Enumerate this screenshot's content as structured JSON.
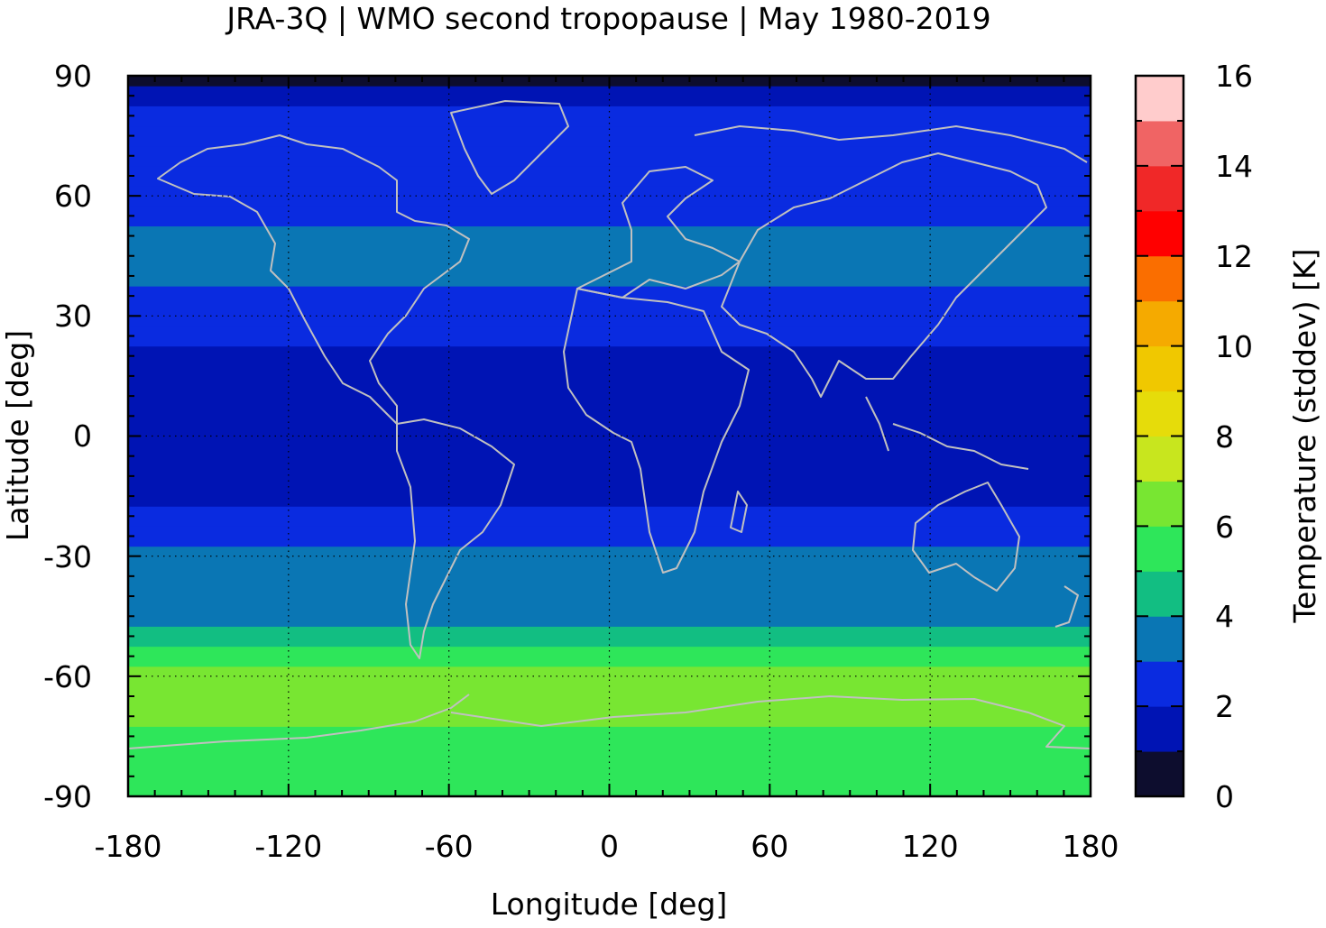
{
  "chart_data": {
    "type": "heatmap",
    "title": "JRA-3Q | WMO second tropopause | May 1980-2019",
    "xlabel": "Longitude [deg]",
    "ylabel": "Latitude [deg]",
    "xlim": [
      -180,
      180
    ],
    "ylim": [
      -90,
      90
    ],
    "x_ticks": [
      -180,
      -120,
      -60,
      0,
      60,
      120,
      180
    ],
    "y_ticks": [
      -90,
      -60,
      -30,
      0,
      30,
      60,
      90
    ],
    "x_tick_labels": [
      "-180",
      "-120",
      "-60",
      "0",
      "60",
      "120",
      "180"
    ],
    "y_tick_labels": [
      "-90",
      "-60",
      "-30",
      "0",
      "30",
      "60",
      "90"
    ],
    "grid": true,
    "colorbar": {
      "label": "Temperature (stddev) [K]",
      "range": [
        0,
        16
      ],
      "ticks": [
        0,
        2,
        4,
        6,
        8,
        10,
        12,
        14,
        16
      ],
      "tick_labels": [
        "0",
        "2",
        "4",
        "6",
        "8",
        "10",
        "12",
        "14",
        "16"
      ],
      "levels": [
        {
          "min": 0,
          "max": 1,
          "color": "#0d0d2e"
        },
        {
          "min": 1,
          "max": 2,
          "color": "#0014b4"
        },
        {
          "min": 2,
          "max": 3,
          "color": "#0a2be0"
        },
        {
          "min": 3,
          "max": 4,
          "color": "#0a76b4"
        },
        {
          "min": 4,
          "max": 5,
          "color": "#12be82"
        },
        {
          "min": 5,
          "max": 6,
          "color": "#2ee65a"
        },
        {
          "min": 6,
          "max": 7,
          "color": "#78e632"
        },
        {
          "min": 7,
          "max": 8,
          "color": "#c8e61e"
        },
        {
          "min": 8,
          "max": 9,
          "color": "#e6dc0a"
        },
        {
          "min": 9,
          "max": 10,
          "color": "#f0c800"
        },
        {
          "min": 10,
          "max": 11,
          "color": "#f5aa00"
        },
        {
          "min": 11,
          "max": 12,
          "color": "#fa6e00"
        },
        {
          "min": 12,
          "max": 13,
          "color": "#ff0000"
        },
        {
          "min": 13,
          "max": 14,
          "color": "#f02828"
        },
        {
          "min": 14,
          "max": 15,
          "color": "#f06464"
        },
        {
          "min": 15,
          "max": 16,
          "color": "#ffcccc"
        }
      ]
    },
    "zonal_profile": {
      "lat": [
        -90,
        -85,
        -80,
        -75,
        -70,
        -65,
        -60,
        -55,
        -50,
        -45,
        -40,
        -35,
        -30,
        -25,
        -20,
        -15,
        -10,
        -5,
        0,
        5,
        10,
        15,
        20,
        25,
        30,
        35,
        40,
        45,
        50,
        55,
        60,
        65,
        70,
        75,
        80,
        85,
        90
      ],
      "value": [
        5.5,
        5.5,
        5.5,
        5.8,
        6.0,
        6.2,
        6.0,
        5.2,
        4.3,
        3.8,
        3.5,
        3.3,
        3.0,
        2.4,
        2.0,
        1.7,
        1.3,
        1.4,
        1.6,
        1.5,
        1.2,
        1.3,
        1.8,
        2.3,
        2.6,
        2.8,
        3.3,
        3.5,
        3.3,
        2.7,
        2.5,
        2.4,
        2.3,
        2.2,
        2.0,
        1.5,
        0.5
      ]
    },
    "background_color": "#000000",
    "coastline_color": "#c0c0c0"
  }
}
